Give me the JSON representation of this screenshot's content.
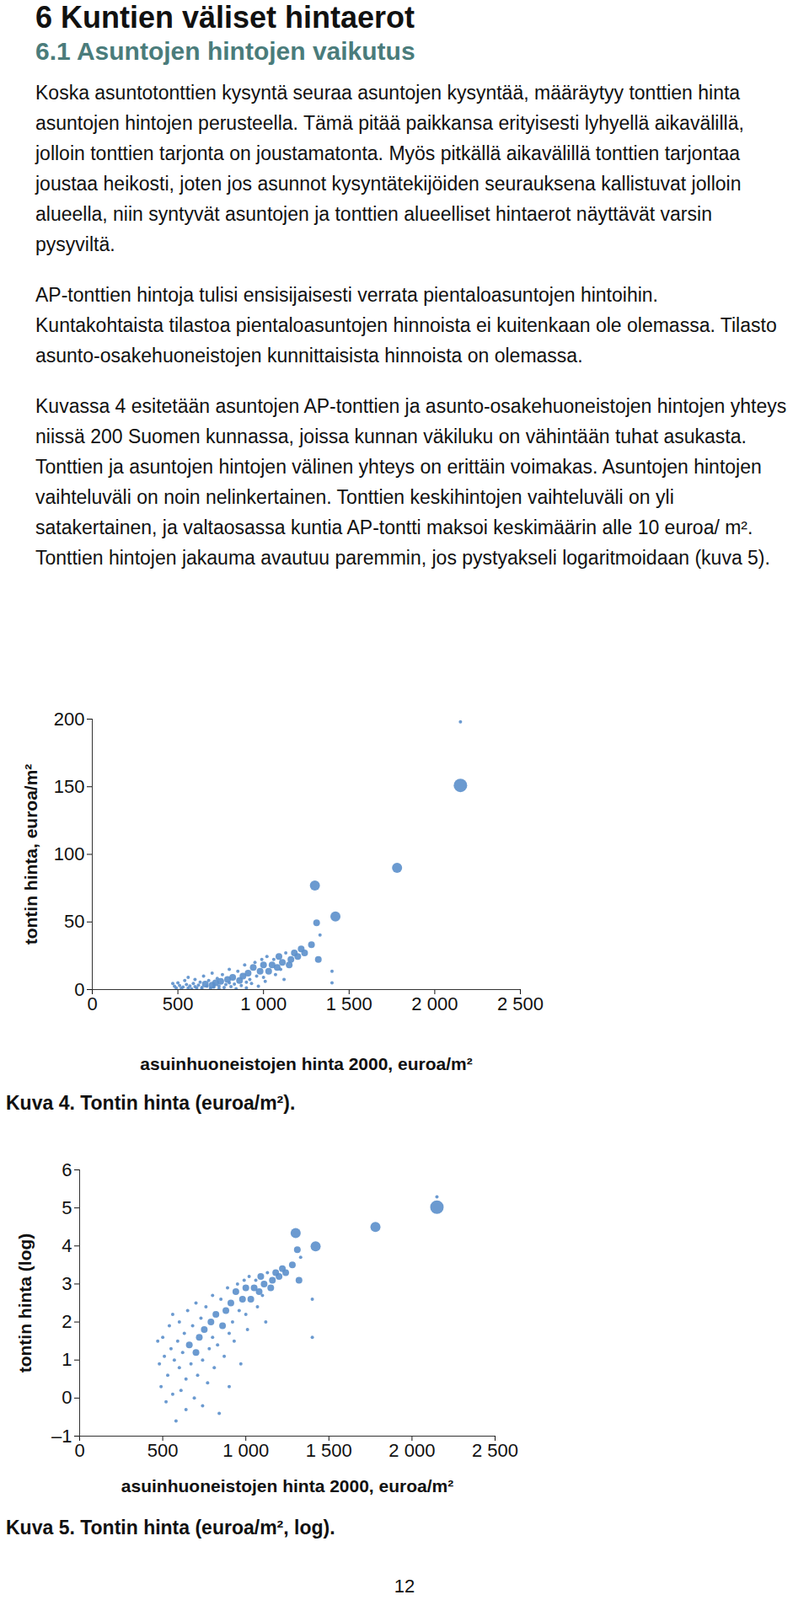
{
  "heading": "6 Kuntien väliset hintaerot",
  "subheading": "6.1 Asuntojen hintojen vaikutus",
  "paragraphs": [
    "Koska asuntotonttien kysyntä seuraa asuntojen kysyntää, määräytyy tonttien hinta asuntojen hintojen perusteella. Tämä pitää paikkansa erityisesti lyhyellä aikavälillä, jolloin tonttien tarjonta on joustamatonta. Myös pitkällä aikavälillä tonttien tarjontaa joustaa heikosti, joten jos asunnot kysyntätekijöiden seurauksena kallistuvat jolloin alueella, niin syntyvät asuntojen ja tonttien alueelliset hintaerot näyttävät varsin pysyviltä.",
    "AP-tonttien hintoja tulisi ensisijaisesti verrata pientaloasuntojen hintoihin. Kuntakohtaista tilastoa pientaloasuntojen hinnoista ei kuitenkaan ole olemassa. Tilasto asunto-osakehuoneistojen kunnittaisista hinnoista on olemassa.",
    "Kuvassa 4 esitetään asuntojen AP-tonttien ja asunto-osakehuoneistojen hintojen yhteys niissä 200 Suomen kunnassa, joissa kunnan väkiluku on vähintään tuhat asukasta. Tonttien ja asuntojen hintojen välinen yhteys on erittäin voimakas. Asuntojen hintojen vaihteluväli on noin nelinkertainen. Tonttien keskihintojen vaihteluväli on yli satakertainen, ja valtaosassa kuntia AP-tontti maksoi keskimäärin alle 10 euroa/ m². Tonttien hintojen jakauma avautuu paremmin, jos pystyakseli logaritmoidaan (kuva 5)."
  ],
  "chart_data": [
    {
      "type": "scatter",
      "caption": "Kuva 4. Tontin hinta (euroa/m²).",
      "xlabel": "asuinhuoneistojen hinta 2000, euroa/m²",
      "ylabel": "tontin hinta, euroa/m²",
      "color": "#5b8fcb",
      "xlim": [
        0,
        2500
      ],
      "ylim": [
        0,
        200
      ],
      "xticks": [
        0,
        500,
        {
          "value": 1000,
          "label": "1 000"
        },
        {
          "value": 1500,
          "label": "1 500"
        },
        {
          "value": 2000,
          "label": "2 000"
        },
        {
          "value": 2500,
          "label": "2 500"
        }
      ],
      "yticks": [
        0,
        50,
        100,
        150,
        200
      ],
      "x": [
        470,
        480,
        490,
        500,
        510,
        520,
        530,
        540,
        550,
        560,
        560,
        570,
        580,
        590,
        600,
        600,
        610,
        620,
        630,
        640,
        640,
        650,
        660,
        670,
        680,
        690,
        700,
        700,
        710,
        720,
        730,
        740,
        740,
        750,
        760,
        770,
        780,
        790,
        800,
        800,
        810,
        820,
        830,
        840,
        850,
        860,
        870,
        880,
        890,
        900,
        900,
        910,
        920,
        930,
        940,
        950,
        960,
        970,
        980,
        990,
        1000,
        1000,
        1010,
        1020,
        1030,
        1050,
        1060,
        1070,
        1080,
        1090,
        1100,
        1110,
        1120,
        1130,
        1150,
        1160,
        1180,
        1200,
        1220,
        1240,
        1280,
        1300,
        1310,
        1320,
        1330,
        1400,
        1400,
        1420,
        1780,
        2150,
        2150
      ],
      "values": [
        4.5,
        2.5,
        1.3,
        5.0,
        3.0,
        0.9,
        1.8,
        6.7,
        3.7,
        1.1,
        9.0,
        2.7,
        0.5,
        4.5,
        2.2,
        7.4,
        1.2,
        3.3,
        5.5,
        0.7,
        1.6,
        10.0,
        4.1,
        2.5,
        6.7,
        1.0,
        3.3,
        12.2,
        1.8,
        5.0,
        8.2,
        0.8,
        2.7,
        6.0,
        11.0,
        1.5,
        3.7,
        7.4,
        5.0,
        14.9,
        2.2,
        9.0,
        4.1,
        0.7,
        13.5,
        6.7,
        3.0,
        10.0,
        18.2,
        5.5,
        1.3,
        12.2,
        7.4,
        4.5,
        16.4,
        20.1,
        10.0,
        2.5,
        13.5,
        22.2,
        9.0,
        18.2,
        6.0,
        24.5,
        13.5,
        18.2,
        22.2,
        11.0,
        16.4,
        24.5,
        14.9,
        20.1,
        7.4,
        27.1,
        18.2,
        22.2,
        27.1,
        24.5,
        30.0,
        27.1,
        33.1,
        77,
        49.4,
        22.2,
        40.4,
        13.5,
        5.0,
        54,
        90,
        151,
        198
      ],
      "sizes": [
        1,
        1,
        1,
        1,
        1,
        1,
        1,
        1,
        1,
        1,
        1,
        1,
        1,
        1,
        1,
        1,
        1,
        1,
        1,
        1,
        1,
        1,
        2,
        1,
        1,
        1,
        2,
        1,
        1,
        2,
        1,
        1,
        1,
        2,
        1,
        1,
        1,
        2,
        1,
        1,
        1,
        2,
        1,
        1,
        1,
        2,
        1,
        2,
        1,
        1,
        1,
        2,
        1,
        1,
        2,
        1,
        1,
        1,
        2,
        1,
        1,
        2,
        1,
        1,
        2,
        2,
        1,
        1,
        2,
        2,
        1,
        2,
        1,
        1,
        2,
        2,
        2,
        2,
        2,
        2,
        2,
        3,
        2,
        2,
        1,
        1,
        1,
        3,
        3,
        4,
        1
      ]
    },
    {
      "type": "scatter",
      "caption": "Kuva 5. Tontin hinta (euroa/m², log).",
      "xlabel": "asuinhuoneistojen hinta 2000, euroa/m²",
      "ylabel": "tontin hinta (log)",
      "color": "#5b8fcb",
      "xlim": [
        0,
        2500
      ],
      "ylim": [
        -1,
        6
      ],
      "xticks": [
        0,
        500,
        {
          "value": 1000,
          "label": "1 000"
        },
        {
          "value": 1500,
          "label": "1 500"
        },
        {
          "value": 2000,
          "label": "2 000"
        },
        {
          "value": 2500,
          "label": "2 500"
        }
      ],
      "yticks": [
        {
          "value": -1,
          "label": "–1"
        },
        0,
        1,
        2,
        3,
        4,
        5,
        6
      ],
      "x": [
        470,
        480,
        490,
        500,
        510,
        520,
        530,
        540,
        550,
        560,
        560,
        570,
        580,
        590,
        600,
        600,
        610,
        620,
        630,
        640,
        640,
        650,
        660,
        670,
        680,
        690,
        700,
        700,
        710,
        720,
        730,
        740,
        740,
        750,
        760,
        770,
        780,
        790,
        800,
        800,
        810,
        820,
        830,
        840,
        850,
        860,
        870,
        880,
        890,
        900,
        900,
        910,
        920,
        930,
        940,
        950,
        960,
        970,
        980,
        990,
        1000,
        1000,
        1010,
        1020,
        1030,
        1050,
        1060,
        1070,
        1080,
        1090,
        1100,
        1110,
        1120,
        1130,
        1150,
        1160,
        1180,
        1200,
        1220,
        1240,
        1280,
        1300,
        1310,
        1320,
        1330,
        1400,
        1400,
        1420,
        1780,
        2150,
        2150
      ],
      "values": [
        1.5,
        0.9,
        0.3,
        1.6,
        1.1,
        -0.1,
        0.6,
        1.9,
        1.3,
        0.1,
        2.2,
        1.0,
        -0.6,
        1.5,
        0.8,
        2.0,
        0.2,
        1.2,
        1.7,
        -0.3,
        0.5,
        2.3,
        1.4,
        0.9,
        1.9,
        0.0,
        1.2,
        2.5,
        0.6,
        1.6,
        2.1,
        -0.2,
        1.0,
        1.8,
        2.4,
        0.4,
        1.3,
        2.0,
        1.6,
        2.7,
        0.8,
        2.2,
        1.4,
        -0.4,
        2.6,
        1.9,
        1.1,
        2.3,
        2.9,
        1.7,
        0.3,
        2.5,
        2.0,
        1.5,
        2.8,
        3.0,
        2.3,
        0.9,
        2.6,
        3.1,
        2.2,
        2.9,
        1.8,
        3.2,
        2.6,
        2.9,
        3.1,
        2.4,
        2.8,
        3.2,
        2.7,
        3.0,
        2.0,
        3.3,
        2.9,
        3.1,
        3.3,
        3.2,
        3.4,
        3.3,
        3.5,
        4.34,
        3.9,
        3.1,
        3.7,
        2.6,
        1.6,
        3.99,
        4.5,
        5.02,
        5.29
      ],
      "sizes": [
        1,
        1,
        1,
        1,
        1,
        1,
        1,
        1,
        1,
        1,
        1,
        1,
        1,
        1,
        1,
        1,
        1,
        1,
        1,
        1,
        1,
        1,
        2,
        1,
        1,
        1,
        2,
        1,
        1,
        2,
        1,
        1,
        1,
        2,
        1,
        1,
        1,
        2,
        1,
        1,
        1,
        2,
        1,
        1,
        1,
        2,
        1,
        2,
        1,
        1,
        1,
        2,
        1,
        1,
        2,
        1,
        1,
        1,
        2,
        1,
        1,
        2,
        1,
        1,
        2,
        2,
        1,
        1,
        2,
        2,
        1,
        2,
        1,
        1,
        2,
        2,
        2,
        2,
        2,
        2,
        2,
        3,
        2,
        2,
        1,
        1,
        1,
        3,
        3,
        4,
        1
      ]
    }
  ],
  "page_number": 12
}
